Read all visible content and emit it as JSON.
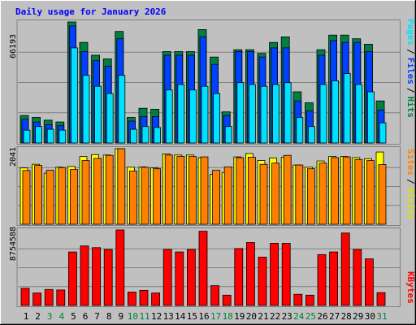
{
  "chart_data": [
    {
      "type": "bar",
      "panel": "hits-files-pages",
      "title": "Daily usage for January 2026",
      "ymax_label": "66193",
      "ylim": [
        0,
        66193
      ],
      "categories": [
        "1",
        "2",
        "3",
        "4",
        "5",
        "6",
        "7",
        "8",
        "9",
        "10",
        "11",
        "12",
        "13",
        "14",
        "15",
        "16",
        "17",
        "18",
        "19",
        "20",
        "21",
        "22",
        "23",
        "24",
        "25",
        "26",
        "27",
        "28",
        "29",
        "30",
        "31"
      ],
      "weekend_days": [
        "3",
        "4",
        "10",
        "11",
        "17",
        "18",
        "24",
        "25",
        "31"
      ],
      "series": [
        {
          "name": "Hits",
          "color": "#008040",
          "values": [
            15000,
            14000,
            12500,
            11500,
            66193,
            55000,
            48000,
            46000,
            61000,
            14000,
            19000,
            18500,
            50000,
            50000,
            50000,
            62000,
            47000,
            17000,
            51000,
            51000,
            49000,
            55000,
            58000,
            28000,
            22000,
            51000,
            59000,
            59000,
            57000,
            54000,
            23000
          ]
        },
        {
          "name": "Files",
          "color": "#0040ff",
          "values": [
            13000,
            11500,
            10000,
            9500,
            64000,
            50000,
            45000,
            42000,
            57000,
            12000,
            14500,
            14500,
            48000,
            48000,
            48000,
            58000,
            43000,
            15000,
            50000,
            50000,
            47000,
            52000,
            52000,
            23000,
            17500,
            48000,
            56000,
            55000,
            55000,
            50000,
            18000
          ]
        },
        {
          "name": "Pages",
          "color": "#00e0ff",
          "values": [
            7000,
            9000,
            7500,
            7000,
            52000,
            37000,
            31000,
            27000,
            37000,
            7500,
            9000,
            8500,
            29000,
            32000,
            29000,
            31000,
            27000,
            9000,
            33000,
            32000,
            31000,
            32000,
            33000,
            14000,
            9000,
            32000,
            34000,
            38000,
            32000,
            28000,
            11000
          ]
        }
      ]
    },
    {
      "type": "bar",
      "panel": "visits-sites",
      "ymax_label": "2041",
      "ylim": [
        0,
        2041
      ],
      "categories": [
        "1",
        "2",
        "3",
        "4",
        "5",
        "6",
        "7",
        "8",
        "9",
        "10",
        "11",
        "12",
        "13",
        "14",
        "15",
        "16",
        "17",
        "18",
        "19",
        "20",
        "21",
        "22",
        "23",
        "24",
        "25",
        "26",
        "27",
        "28",
        "29",
        "30",
        "31"
      ],
      "series": [
        {
          "name": "Visits",
          "color": "#ffff00",
          "values": [
            1520,
            1620,
            1380,
            1540,
            1560,
            1830,
            1880,
            1870,
            2041,
            1540,
            1550,
            1520,
            1900,
            1870,
            1870,
            1800,
            1350,
            1400,
            1820,
            1910,
            1720,
            1790,
            1810,
            1600,
            1540,
            1710,
            1830,
            1830,
            1800,
            1770,
            1950
          ]
        },
        {
          "name": "Sites",
          "color": "#ff8000",
          "values": [
            1450,
            1590,
            1460,
            1530,
            1480,
            1720,
            1780,
            1860,
            2041,
            1440,
            1540,
            1500,
            1870,
            1830,
            1830,
            1820,
            1460,
            1550,
            1800,
            1810,
            1620,
            1650,
            1860,
            1600,
            1500,
            1650,
            1800,
            1820,
            1750,
            1720,
            1610
          ]
        }
      ]
    },
    {
      "type": "bar",
      "panel": "kbytes",
      "ymax_label": "8754588",
      "ylim": [
        0,
        8754588
      ],
      "categories": [
        "1",
        "2",
        "3",
        "4",
        "5",
        "6",
        "7",
        "8",
        "9",
        "10",
        "11",
        "12",
        "13",
        "14",
        "15",
        "16",
        "17",
        "18",
        "19",
        "20",
        "21",
        "22",
        "23",
        "24",
        "25",
        "26",
        "27",
        "28",
        "29",
        "30",
        "31"
      ],
      "series": [
        {
          "name": "KBytes",
          "color": "#ff0000",
          "values": [
            2000000,
            1450000,
            1850000,
            1800000,
            6200000,
            6900000,
            6700000,
            6500000,
            8754588,
            1550000,
            1750000,
            1450000,
            6500000,
            6200000,
            6500000,
            8600000,
            2300000,
            1200000,
            6600000,
            7300000,
            5600000,
            7200000,
            7200000,
            1300000,
            1200000,
            5900000,
            6200000,
            8400000,
            6500000,
            5400000,
            1500000
          ]
        }
      ]
    }
  ],
  "legend": {
    "pages": "Pages",
    "files": "Files",
    "hits": "Hits",
    "sites": "Sites",
    "visits": "Visits",
    "kbytes": "KBytes",
    "separator": "/"
  },
  "colors": {
    "background": "#c0c0c0",
    "title_text": "#0000ff",
    "weekday_label": "#000000",
    "weekend_label": "#008040",
    "gridline": "#808080"
  }
}
